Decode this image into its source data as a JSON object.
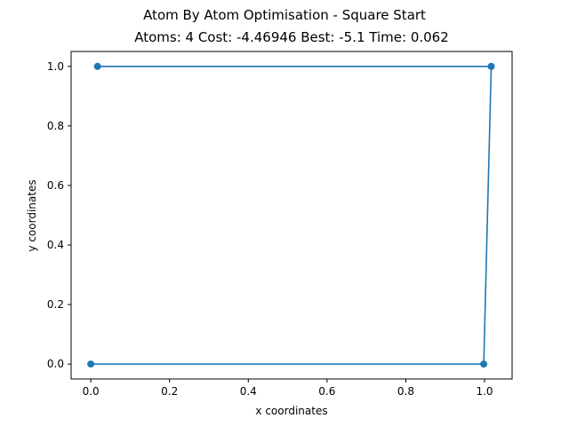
{
  "figure": {
    "suptitle": "Atom By Atom Optimisation - Square Start"
  },
  "chart_data": {
    "type": "line",
    "title": "Atoms: 4 Cost: -4.46946 Best: -5.1 Time: 0.062",
    "xlabel": "x coordinates",
    "ylabel": "y coordinates",
    "xlim": [
      -0.05,
      1.07
    ],
    "ylim": [
      -0.05,
      1.05
    ],
    "xticks": [
      0.0,
      0.2,
      0.4,
      0.6,
      0.8,
      1.0
    ],
    "xtick_labels": [
      "0.0",
      "0.2",
      "0.4",
      "0.6",
      "0.8",
      "1.0"
    ],
    "yticks": [
      0.0,
      0.2,
      0.4,
      0.6,
      0.8,
      1.0
    ],
    "ytick_labels": [
      "0.0",
      "0.2",
      "0.4",
      "0.6",
      "0.8",
      "1.0"
    ],
    "grid": false,
    "series": [
      {
        "color": "#1f77b4",
        "marker": "circle",
        "x": [
          0.0,
          0.998,
          1.017,
          0.017
        ],
        "y": [
          0.0,
          0.0,
          1.0,
          1.0
        ]
      }
    ]
  }
}
